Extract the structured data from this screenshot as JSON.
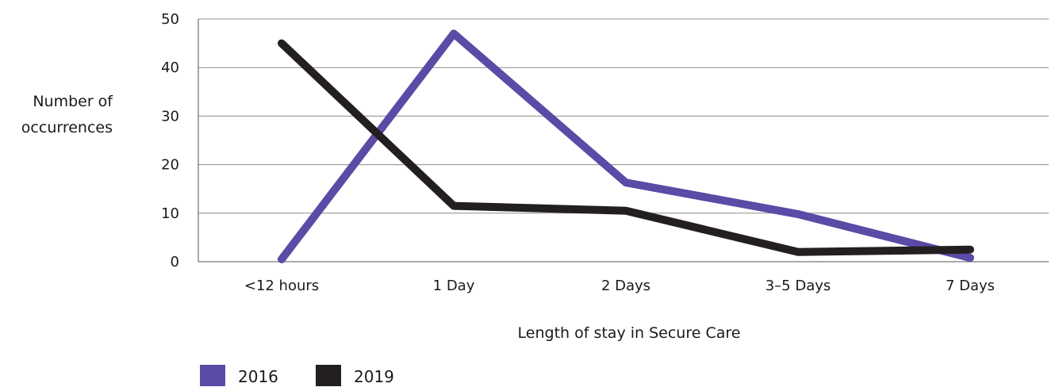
{
  "chart_data": {
    "type": "line",
    "categories": [
      "<12 hours",
      "1 Day",
      "2 Days",
      "3–5 Days",
      "7 Days"
    ],
    "series": [
      {
        "name": "2016",
        "color": "#5b4aa6",
        "values": [
          0.5,
          47,
          16.3,
          9.8,
          0.8
        ]
      },
      {
        "name": "2019",
        "color": "#231f20",
        "values": [
          45,
          11.5,
          10.5,
          2.0,
          2.5
        ]
      }
    ],
    "xlabel": "Length of stay in Secure Care",
    "ylabel_lines": [
      "Number of",
      "occurrences"
    ],
    "ylim": [
      0,
      50
    ],
    "yticks": [
      0,
      10,
      20,
      30,
      40,
      50
    ],
    "grid": true,
    "legend_position": "bottom-left"
  }
}
